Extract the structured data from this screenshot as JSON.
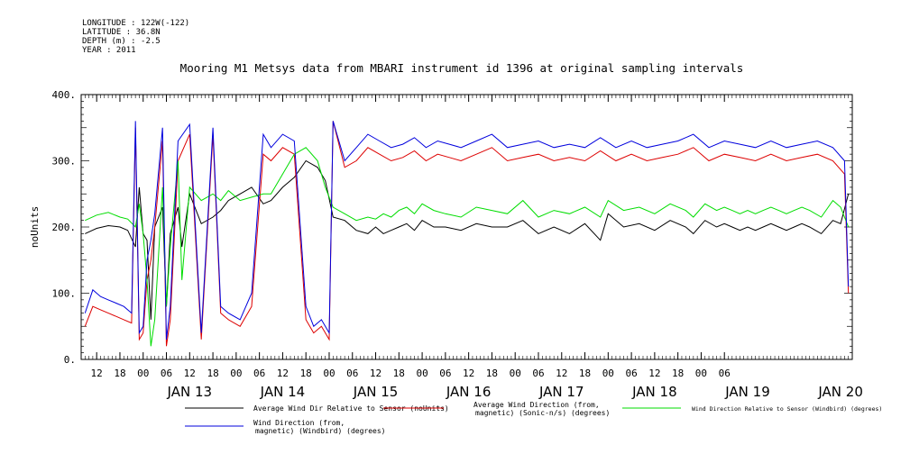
{
  "meta": {
    "longitude": "LONGITUDE : 122W(-122)",
    "latitude": "LATITUDE : 36.8N",
    "depth": "DEPTH (m) : -2.5",
    "year": "YEAR : 2011"
  },
  "chart_data": {
    "type": "line",
    "title": "Mooring M1 Metsys data from MBARI instrument id 1396 at original sampling intervals",
    "ylabel": "noUnits",
    "xlabel": "",
    "ylim": [
      0,
      400
    ],
    "yticks": [
      0,
      100,
      200,
      300,
      400
    ],
    "ytick_labels": [
      "0.",
      "100.",
      "200.",
      "300.",
      "400."
    ],
    "xlim_hours": [
      -16,
      183
    ],
    "x_hour_labels": [
      "12",
      "18",
      "00",
      "06",
      "12",
      "18",
      "00",
      "06",
      "12",
      "18",
      "00",
      "06",
      "12",
      "18",
      "00",
      "06",
      "12",
      "18",
      "00",
      "06",
      "12",
      "18",
      "00",
      "06",
      "12",
      "18",
      "00",
      "06"
    ],
    "x_date_labels": [
      "JAN 13",
      "JAN 14",
      "JAN 15",
      "JAN 16",
      "JAN 17",
      "JAN 18",
      "JAN 19",
      "JAN 20"
    ],
    "grid": false,
    "legend": "bottom",
    "series": [
      {
        "name": "Average Wind Dir Relative to Sensor (noUnits)",
        "color": "#000000",
        "x": [
          -15,
          -12,
          -9,
          -6,
          -4,
          -2,
          -1,
          0,
          1,
          2,
          3,
          5,
          6,
          7,
          9,
          10,
          12,
          15,
          18,
          20,
          22,
          25,
          28,
          31,
          33,
          36,
          39,
          42,
          45,
          47,
          49,
          52,
          55,
          58,
          60,
          62,
          64,
          66,
          68,
          70,
          72,
          75,
          78,
          82,
          86,
          90,
          94,
          98,
          102,
          106,
          110,
          114,
          118,
          120,
          124,
          128,
          132,
          136,
          140,
          142,
          145,
          148,
          150,
          152,
          154,
          156,
          158,
          160,
          162,
          164,
          166,
          168,
          170,
          172,
          175,
          178,
          180,
          182
        ],
        "y": [
          190,
          198,
          202,
          200,
          195,
          170,
          260,
          190,
          180,
          60,
          200,
          230,
          80,
          190,
          230,
          170,
          250,
          205,
          215,
          225,
          240,
          250,
          260,
          235,
          240,
          260,
          275,
          300,
          290,
          270,
          215,
          210,
          195,
          190,
          200,
          190,
          195,
          200,
          205,
          195,
          210,
          200,
          200,
          195,
          205,
          200,
          200,
          210,
          190,
          200,
          190,
          205,
          180,
          220,
          200,
          205,
          195,
          210,
          200,
          190,
          210,
          200,
          205,
          200,
          195,
          200,
          195,
          200,
          205,
          200,
          195,
          200,
          205,
          200,
          190,
          210,
          205,
          250
        ]
      },
      {
        "name": "Average Wind Direction (from, magnetic) (Sonic-n/s) (degrees)",
        "color": "#dd0000",
        "x": [
          -15,
          -13,
          -11,
          -9,
          -7,
          -5,
          -3,
          -2,
          -1,
          0,
          1,
          2,
          3,
          5,
          6,
          7,
          9,
          12,
          15,
          18,
          20,
          22,
          25,
          28,
          31,
          33,
          36,
          39,
          42,
          44,
          46,
          48,
          49,
          52,
          55,
          58,
          61,
          64,
          67,
          70,
          73,
          76,
          79,
          82,
          86,
          90,
          94,
          98,
          102,
          106,
          110,
          114,
          118,
          122,
          126,
          130,
          134,
          138,
          142,
          146,
          150,
          154,
          158,
          162,
          166,
          170,
          174,
          178,
          181,
          182
        ],
        "y": [
          50,
          80,
          75,
          70,
          65,
          60,
          55,
          350,
          30,
          40,
          120,
          150,
          200,
          330,
          20,
          60,
          300,
          340,
          30,
          340,
          70,
          60,
          50,
          80,
          310,
          300,
          320,
          310,
          60,
          40,
          50,
          30,
          360,
          290,
          300,
          320,
          310,
          300,
          305,
          315,
          300,
          310,
          305,
          300,
          310,
          320,
          300,
          305,
          310,
          300,
          305,
          300,
          315,
          300,
          310,
          300,
          305,
          310,
          320,
          300,
          310,
          305,
          300,
          310,
          300,
          305,
          310,
          300,
          280,
          100
        ]
      },
      {
        "name": "Wind Direction Relative to Sensor (Windbird) (degrees)",
        "color": "#00dd00",
        "x": [
          -15,
          -12,
          -9,
          -6,
          -4,
          -2,
          -1,
          0,
          1,
          2,
          3,
          5,
          6,
          7,
          9,
          10,
          12,
          15,
          18,
          20,
          22,
          25,
          28,
          31,
          33,
          36,
          39,
          42,
          45,
          47,
          49,
          52,
          55,
          58,
          60,
          62,
          64,
          66,
          68,
          70,
          72,
          75,
          78,
          82,
          86,
          90,
          94,
          98,
          102,
          106,
          110,
          114,
          118,
          120,
          124,
          128,
          132,
          136,
          140,
          142,
          145,
          148,
          150,
          152,
          154,
          156,
          158,
          160,
          162,
          164,
          166,
          168,
          170,
          172,
          175,
          178,
          180,
          182
        ],
        "y": [
          210,
          218,
          222,
          215,
          212,
          200,
          235,
          190,
          120,
          20,
          60,
          260,
          80,
          170,
          300,
          120,
          260,
          240,
          250,
          240,
          255,
          240,
          245,
          250,
          250,
          280,
          310,
          320,
          300,
          260,
          230,
          220,
          210,
          215,
          212,
          220,
          215,
          225,
          230,
          220,
          235,
          225,
          220,
          215,
          230,
          225,
          220,
          240,
          215,
          225,
          220,
          230,
          215,
          240,
          225,
          230,
          220,
          235,
          225,
          215,
          235,
          225,
          230,
          225,
          220,
          225,
          220,
          225,
          230,
          225,
          220,
          225,
          230,
          225,
          215,
          240,
          230,
          200
        ]
      },
      {
        "name": "Wind Direction (from, magnetic) (Windbird) (degrees)",
        "color": "#0000dd",
        "x": [
          -15,
          -13,
          -11,
          -9,
          -7,
          -5,
          -3,
          -2,
          -1,
          0,
          1,
          2,
          3,
          5,
          6,
          7,
          9,
          12,
          15,
          18,
          20,
          22,
          25,
          28,
          31,
          33,
          36,
          39,
          42,
          44,
          46,
          48,
          49,
          52,
          55,
          58,
          61,
          64,
          67,
          70,
          73,
          76,
          79,
          82,
          86,
          90,
          94,
          98,
          102,
          106,
          110,
          114,
          118,
          122,
          126,
          130,
          134,
          138,
          142,
          146,
          150,
          154,
          158,
          162,
          166,
          170,
          174,
          178,
          181,
          182
        ],
        "y": [
          70,
          105,
          95,
          90,
          85,
          80,
          70,
          360,
          40,
          50,
          150,
          180,
          220,
          350,
          30,
          80,
          330,
          355,
          40,
          350,
          80,
          70,
          60,
          100,
          340,
          320,
          340,
          330,
          80,
          50,
          60,
          40,
          360,
          300,
          320,
          340,
          330,
          320,
          325,
          335,
          320,
          330,
          325,
          320,
          330,
          340,
          320,
          325,
          330,
          320,
          325,
          320,
          335,
          320,
          330,
          320,
          325,
          330,
          340,
          320,
          330,
          325,
          320,
          330,
          320,
          325,
          330,
          320,
          300,
          110
        ]
      }
    ]
  },
  "legend": {
    "black": "Average Wind Dir Relative to Sensor (noUnits)",
    "red_line1": "Average Wind Direction (from,",
    "red_line2": "magnetic) (Sonic-n/s) (degrees)",
    "green": "Wind Direction Relative to Sensor (Windbird) (degrees)",
    "blue_line1": "Wind Direction (from,",
    "blue_line2": "magnetic) (Windbird) (degrees)"
  }
}
